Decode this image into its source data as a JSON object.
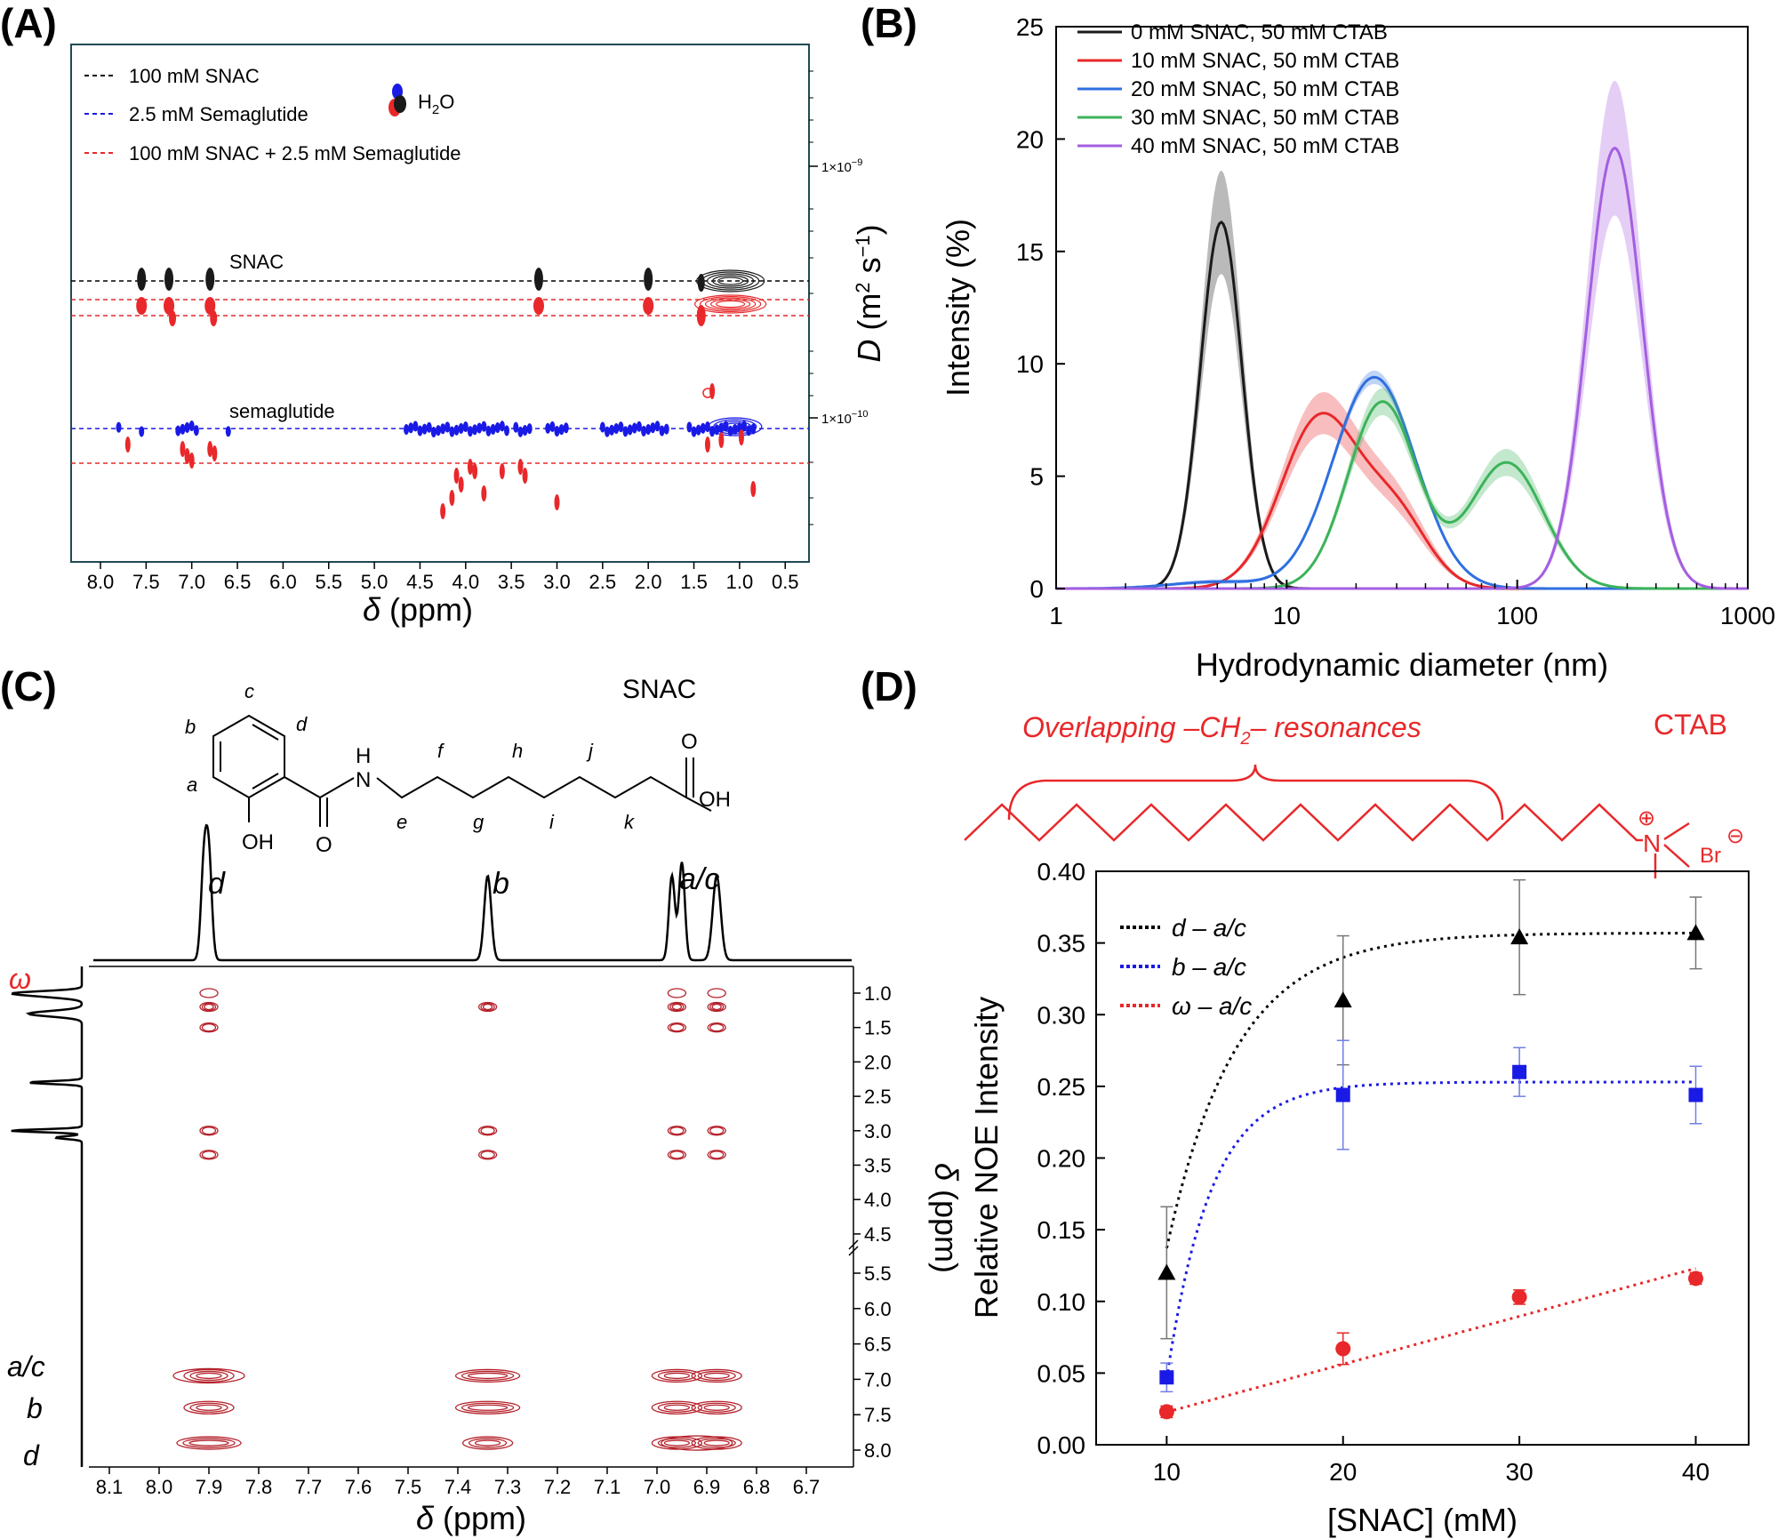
{
  "panels": {
    "a": {
      "label": "(A)",
      "legend": [
        "100 mM SNAC",
        "2.5 mM Semaglutide",
        "100 mM SNAC + 2.5 mM Semaglutide"
      ],
      "water_label": "H",
      "water_sub": "2",
      "water_tail": "O",
      "snac_label": "SNAC",
      "sema_label": "semaglutide",
      "x_ticks": [
        "8.0",
        "7.5",
        "7.0",
        "6.5",
        "6.0",
        "5.5",
        "5.0",
        "4.5",
        "4.0",
        "3.5",
        "3.0",
        "2.5",
        "2.0",
        "1.5",
        "1.0",
        "0.5"
      ],
      "xlabel_sym": "δ",
      "xlabel_unit": " (ppm)",
      "y_tick_1e9": "1×10",
      "y_tick_1e9_exp": "−9",
      "y_tick_1e10": "1×10",
      "y_tick_1e10_exp": "−10",
      "ylabel_sym": "D",
      "ylabel_unit": " (m",
      "ylabel_exp1": "2",
      "ylabel_s": " s",
      "ylabel_exp2": "−1",
      "ylabel_close": ")"
    },
    "b": {
      "label": "(B)",
      "xlabel": "Hydrodynamic diameter (nm)",
      "ylabel": "Intensity (%)",
      "x_ticks": [
        "1",
        "10",
        "100",
        "1000"
      ],
      "y_ticks": [
        "0",
        "5",
        "10",
        "15",
        "20",
        "25"
      ]
    },
    "c": {
      "label": "(C)",
      "molecule_name": "SNAC",
      "atoms": [
        "a",
        "b",
        "c",
        "d",
        "e",
        "f",
        "g",
        "h",
        "i",
        "j",
        "k"
      ],
      "nh": "H",
      "n": "N",
      "oh_ring": "OH",
      "o_amide": "O",
      "o_acid": "O",
      "oh_acid": "OH",
      "peak_d": "d",
      "peak_b": "b",
      "peak_ac": "a/c",
      "omega": "ω",
      "left_ac": "a/c",
      "left_b": "b",
      "left_d": "d",
      "x_ticks": [
        "8.1",
        "8.0",
        "7.9",
        "7.8",
        "7.7",
        "7.6",
        "7.5",
        "7.4",
        "7.3",
        "7.2",
        "7.1",
        "7.0",
        "6.9",
        "6.8",
        "6.7"
      ],
      "y_ticks": [
        "1.0",
        "1.5",
        "2.0",
        "2.5",
        "3.0",
        "3.5",
        "4.0",
        "4.5",
        "5.5",
        "6.0",
        "6.5",
        "7.0",
        "7.5",
        "8.0"
      ],
      "xlabel_sym": "δ",
      "xlabel_unit": " (ppm)",
      "ylabel_sym": "δ",
      "ylabel_unit": " (ppm)"
    },
    "d": {
      "label": "(D)",
      "overlap_label": "Overlapping –CH",
      "overlap_sub": "2",
      "overlap_tail": "– resonances",
      "ctab_label": "CTAB",
      "plus": "⊕",
      "n_label": "N",
      "br_label": "Br",
      "minus": "⊖",
      "xlabel": "[SNAC] (mM)",
      "ylabel": "Relative NOE Intensity",
      "x_ticks": [
        "10",
        "20",
        "30",
        "40"
      ],
      "y_ticks": [
        "0.00",
        "0.05",
        "0.10",
        "0.15",
        "0.20",
        "0.25",
        "0.30",
        "0.35",
        "0.40"
      ]
    }
  },
  "colors": {
    "black": "#1a1a1a",
    "red": "#e8282a",
    "blue": "#2f6fe0",
    "green": "#3cb35a",
    "purple": "#a45ee0",
    "sema_blue": "#1a1ae6",
    "contour": "#b5222b"
  },
  "chart_data": [
    {
      "type": "area",
      "title": "",
      "xlabel": "Hydrodynamic diameter (nm)",
      "ylabel": "Intensity (%)",
      "xscale": "log",
      "xlim": [
        1,
        1000
      ],
      "ylim": [
        0,
        25
      ],
      "legend_position": "top-right",
      "series": [
        {
          "name": "0 mM SNAC, 50 mM CTAB",
          "color": "#1a1a1a",
          "peaks": [
            {
              "center": 5.2,
              "height": 16.3,
              "width": 0.09,
              "band": 2.3
            }
          ]
        },
        {
          "name": "10 mM SNAC, 50 mM CTAB",
          "color": "#e8282a",
          "peaks": [
            {
              "center": 14,
              "height": 7.6,
              "width": 0.17,
              "band": 0.9
            },
            {
              "center": 30,
              "height": 3.0,
              "width": 0.14,
              "band": 0.5
            }
          ]
        },
        {
          "name": "20 mM SNAC, 50 mM CTAB",
          "color": "#2f6fe0",
          "peaks": [
            {
              "center": 24,
              "height": 9.4,
              "width": 0.18,
              "band": 0.3
            },
            {
              "center": 5,
              "height": 0.3,
              "width": 0.2,
              "band": 0.1
            }
          ]
        },
        {
          "name": "30 mM SNAC, 50 mM CTAB",
          "color": "#3cb35a",
          "peaks": [
            {
              "center": 26,
              "height": 8.3,
              "width": 0.15,
              "band": 0.6
            },
            {
              "center": 90,
              "height": 5.6,
              "width": 0.16,
              "band": 0.6
            }
          ]
        },
        {
          "name": "40 mM SNAC, 50 mM CTAB",
          "color": "#a45ee0",
          "peaks": [
            {
              "center": 265,
              "height": 19.6,
              "width": 0.12,
              "band": 3.0
            }
          ]
        }
      ]
    },
    {
      "type": "scatter",
      "title": "",
      "xlabel": "[SNAC] (mM)",
      "ylabel": "Relative NOE Intensity",
      "xlim": [
        6,
        43
      ],
      "ylim": [
        0,
        0.4
      ],
      "legend_position": "top-left",
      "series": [
        {
          "name": "d – a/c",
          "color": "#000000",
          "marker": "triangle",
          "x": [
            10,
            20,
            30,
            40
          ],
          "y": [
            0.12,
            0.31,
            0.354,
            0.357
          ],
          "err": [
            0.046,
            0.045,
            0.04,
            0.025
          ],
          "fit": {
            "a": 0.357,
            "k": 0.255,
            "x0": 8.1
          }
        },
        {
          "name": "b – a/c",
          "color": "#1a1ae6",
          "marker": "square",
          "x": [
            10,
            20,
            30,
            40
          ],
          "y": [
            0.047,
            0.244,
            0.26,
            0.244
          ],
          "err": [
            0.01,
            0.038,
            0.017,
            0.02
          ],
          "fit": {
            "a": 0.253,
            "k": 0.4,
            "x0": 9.5
          }
        },
        {
          "name": "ω – a/c",
          "color": "#e8282a",
          "marker": "circle",
          "x": [
            10,
            20,
            30,
            40
          ],
          "y": [
            0.023,
            0.067,
            0.103,
            0.116
          ],
          "err": [
            0.004,
            0.011,
            0.005,
            0.004
          ],
          "fit": {
            "linear": [
              0.0228,
              0.00334
            ]
          }
        }
      ]
    }
  ]
}
